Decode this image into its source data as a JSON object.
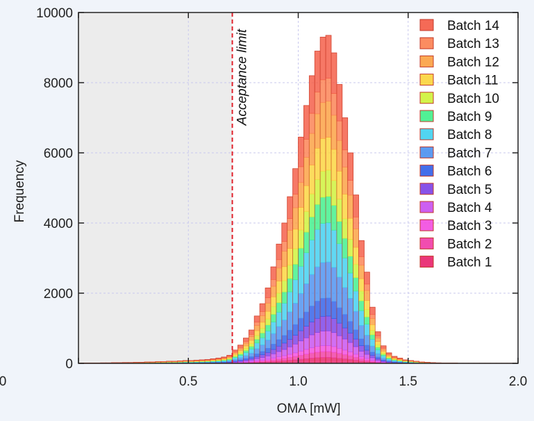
{
  "chart_data": {
    "type": "bar",
    "stacked": true,
    "title": "",
    "xlabel": "OMA [mW]",
    "ylabel": "Frequency",
    "xlim": [
      0,
      2.0
    ],
    "ylim": [
      0,
      10000
    ],
    "x_ticks": [
      0,
      0.5,
      1.0,
      1.5,
      2.0
    ],
    "x_tick_labels": [
      "0",
      "0.5",
      "1.0",
      "1.5",
      "2.0"
    ],
    "y_ticks": [
      0,
      2000,
      4000,
      6000,
      8000,
      10000
    ],
    "y_tick_labels": [
      "0",
      "2000",
      "4000",
      "6000",
      "8000",
      "10000"
    ],
    "grid": true,
    "legend_position": "top-right",
    "bin_width": 0.025,
    "bin_centers": [
      0.0125,
      0.0375,
      0.0625,
      0.0875,
      0.1125,
      0.1375,
      0.1625,
      0.1875,
      0.2125,
      0.2375,
      0.2625,
      0.2875,
      0.3125,
      0.3375,
      0.3625,
      0.3875,
      0.4125,
      0.4375,
      0.4625,
      0.4875,
      0.5125,
      0.5375,
      0.5625,
      0.5875,
      0.6125,
      0.6375,
      0.6625,
      0.6875,
      0.7125,
      0.7375,
      0.7625,
      0.7875,
      0.8125,
      0.8375,
      0.8625,
      0.8875,
      0.9125,
      0.9375,
      0.9625,
      0.9875,
      1.0125,
      1.0375,
      1.0625,
      1.0875,
      1.1125,
      1.1375,
      1.1625,
      1.1875,
      1.2125,
      1.2375,
      1.2625,
      1.2875,
      1.3125,
      1.3375,
      1.3625,
      1.3875,
      1.4125,
      1.4375,
      1.4625,
      1.4875,
      1.5125,
      1.5375,
      1.5625,
      1.5875,
      1.6125,
      1.6375,
      1.6625,
      1.6875,
      1.7125,
      1.7375,
      1.7625,
      1.7875,
      1.8125,
      1.8375,
      1.8625,
      1.8875,
      1.9125,
      1.9375,
      1.9625,
      1.9875
    ],
    "totals": [
      10,
      10,
      10,
      10,
      15,
      15,
      20,
      20,
      25,
      25,
      30,
      30,
      40,
      40,
      50,
      50,
      60,
      60,
      70,
      80,
      80,
      90,
      100,
      110,
      130,
      150,
      180,
      230,
      380,
      520,
      720,
      950,
      1350,
      1700,
      2150,
      2750,
      3400,
      4000,
      4750,
      5550,
      6450,
      7350,
      8200,
      8900,
      9300,
      9350,
      8850,
      7950,
      7000,
      6000,
      4800,
      3500,
      2600,
      1600,
      900,
      500,
      300,
      200,
      150,
      100,
      80,
      60,
      40,
      30,
      20,
      15,
      10,
      10,
      10,
      5,
      5,
      5,
      5,
      5,
      5,
      5,
      5,
      5,
      5,
      5
    ],
    "series": [
      {
        "name": "Batch 1",
        "fraction": 0.018,
        "color": "#e8206a"
      },
      {
        "name": "Batch 2",
        "fraction": 0.018,
        "color": "#f03aa6"
      },
      {
        "name": "Batch 3",
        "fraction": 0.018,
        "color": "#f24be0"
      },
      {
        "name": "Batch 4",
        "fraction": 0.045,
        "color": "#c74ff0"
      },
      {
        "name": "Batch 5",
        "fraction": 0.045,
        "color": "#7a3fe6"
      },
      {
        "name": "Batch 6",
        "fraction": 0.055,
        "color": "#2f5ee8"
      },
      {
        "name": "Batch 7",
        "fraction": 0.11,
        "color": "#4a90f0"
      },
      {
        "name": "Batch 8",
        "fraction": 0.12,
        "color": "#3ed0f0"
      },
      {
        "name": "Batch 9",
        "fraction": 0.08,
        "color": "#3ef08a"
      },
      {
        "name": "Batch 10",
        "fraction": 0.08,
        "color": "#cef236"
      },
      {
        "name": "Batch 11",
        "fraction": 0.1,
        "color": "#fbd43a"
      },
      {
        "name": "Batch 12",
        "fraction": 0.11,
        "color": "#fba040"
      },
      {
        "name": "Batch 13",
        "fraction": 0.07,
        "color": "#fb8050"
      },
      {
        "name": "Batch 14",
        "fraction": 0.131,
        "color": "#f45a44"
      }
    ],
    "annotations": [
      {
        "text": "Acceptance limit",
        "x": 0.7,
        "style": "dashed red vertical line",
        "shaded_region": [
          0,
          0.7
        ]
      }
    ],
    "colors": {
      "shaded_region": "#ececec",
      "limit_line": "#e0202a",
      "grid": "#c9c9ee"
    }
  }
}
